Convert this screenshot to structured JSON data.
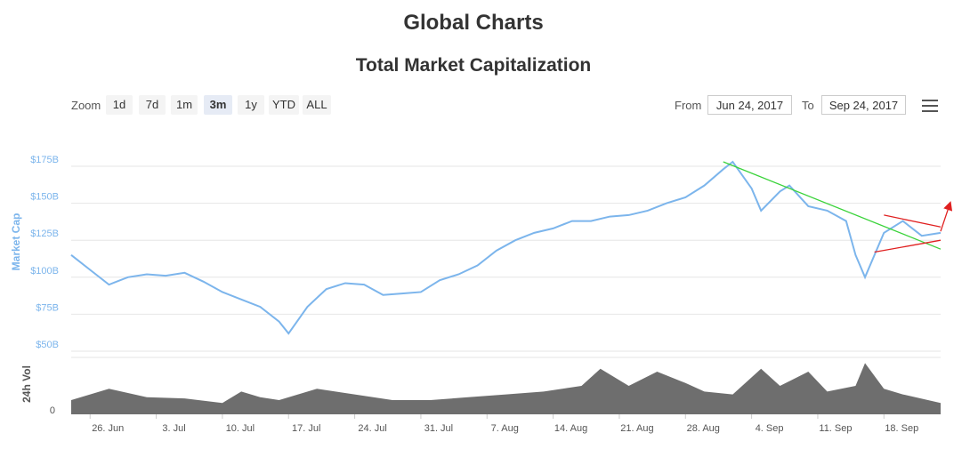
{
  "page": {
    "title": "Global Charts"
  },
  "toolbar": {
    "zoom_label": "Zoom",
    "zoom_buttons": [
      "1d",
      "7d",
      "1m",
      "3m",
      "1y",
      "YTD",
      "ALL"
    ],
    "active_zoom": "3m",
    "from_label": "From",
    "from_value": "Jun 24, 2017",
    "to_label": "To",
    "to_value": "Sep 24, 2017",
    "menu_icon": "hamburger-menu-icon"
  },
  "chart_data": {
    "type": "line",
    "title": "Total Market Capitalization",
    "ylabel": "Market Cap",
    "ylabel_volume": "24h Vol",
    "ylim": [
      50,
      175
    ],
    "yticks": [
      "$50B",
      "$75B",
      "$100B",
      "$125B",
      "$150B",
      "$175B"
    ],
    "volume_ticks": [
      "0"
    ],
    "xticks": [
      "26. Jun",
      "3. Jul",
      "10. Jul",
      "17. Jul",
      "24. Jul",
      "31. Jul",
      "7. Aug",
      "14. Aug",
      "21. Aug",
      "28. Aug",
      "4. Sep",
      "11. Sep",
      "18. Sep"
    ],
    "grid": true,
    "colors": {
      "line": "#7cb5ec",
      "volume": "#6e6e6e",
      "trend_green": "#3ad33a",
      "trend_red": "#e02020"
    },
    "series": [
      {
        "x": [
          "2017-06-24",
          "2017-06-26",
          "2017-06-28",
          "2017-06-30",
          "2017-07-02",
          "2017-07-04",
          "2017-07-06",
          "2017-07-08",
          "2017-07-10",
          "2017-07-12",
          "2017-07-14",
          "2017-07-16",
          "2017-07-17",
          "2017-07-19",
          "2017-07-21",
          "2017-07-23",
          "2017-07-25",
          "2017-07-27",
          "2017-07-29",
          "2017-07-31",
          "2017-08-02",
          "2017-08-04",
          "2017-08-06",
          "2017-08-08",
          "2017-08-10",
          "2017-08-12",
          "2017-08-14",
          "2017-08-16",
          "2017-08-18",
          "2017-08-20",
          "2017-08-22",
          "2017-08-24",
          "2017-08-26",
          "2017-08-28",
          "2017-08-30",
          "2017-09-01",
          "2017-09-02",
          "2017-09-04",
          "2017-09-05",
          "2017-09-07",
          "2017-09-08",
          "2017-09-10",
          "2017-09-12",
          "2017-09-14",
          "2017-09-15",
          "2017-09-16",
          "2017-09-18",
          "2017-09-20",
          "2017-09-22",
          "2017-09-24"
        ],
        "values": [
          115,
          105,
          95,
          100,
          102,
          101,
          103,
          97,
          90,
          85,
          80,
          70,
          62,
          80,
          92,
          96,
          95,
          88,
          89,
          90,
          98,
          102,
          108,
          118,
          125,
          130,
          133,
          138,
          138,
          141,
          142,
          145,
          150,
          154,
          162,
          173,
          178,
          160,
          145,
          158,
          162,
          148,
          145,
          138,
          115,
          100,
          130,
          138,
          128,
          130
        ]
      }
    ],
    "volume": {
      "x": [
        "2017-06-24",
        "2017-06-28",
        "2017-07-02",
        "2017-07-06",
        "2017-07-10",
        "2017-07-12",
        "2017-07-14",
        "2017-07-16",
        "2017-07-20",
        "2017-07-24",
        "2017-07-28",
        "2017-08-01",
        "2017-08-05",
        "2017-08-09",
        "2017-08-13",
        "2017-08-17",
        "2017-08-19",
        "2017-08-22",
        "2017-08-25",
        "2017-08-28",
        "2017-08-30",
        "2017-09-02",
        "2017-09-05",
        "2017-09-07",
        "2017-09-10",
        "2017-09-12",
        "2017-09-15",
        "2017-09-16",
        "2017-09-18",
        "2017-09-20",
        "2017-09-24"
      ],
      "values": [
        0.25,
        0.45,
        0.3,
        0.28,
        0.2,
        0.4,
        0.3,
        0.25,
        0.45,
        0.35,
        0.25,
        0.25,
        0.3,
        0.35,
        0.4,
        0.5,
        0.8,
        0.5,
        0.75,
        0.55,
        0.4,
        0.35,
        0.8,
        0.5,
        0.75,
        0.4,
        0.5,
        0.9,
        0.45,
        0.35,
        0.2
      ]
    },
    "annotations": [
      {
        "type": "trendline",
        "color": "green",
        "from": [
          "2017-09-01",
          178
        ],
        "to": [
          "2017-09-24",
          119
        ]
      },
      {
        "type": "trendline",
        "color": "red",
        "from": [
          "2017-09-18",
          142
        ],
        "to": [
          "2017-09-24",
          134
        ]
      },
      {
        "type": "trendline",
        "color": "red",
        "from": [
          "2017-09-17",
          117
        ],
        "to": [
          "2017-09-24",
          125
        ]
      },
      {
        "type": "arrow",
        "color": "red",
        "from": [
          "2017-09-24",
          131
        ],
        "to": [
          "2017-09-25",
          150
        ]
      }
    ]
  }
}
